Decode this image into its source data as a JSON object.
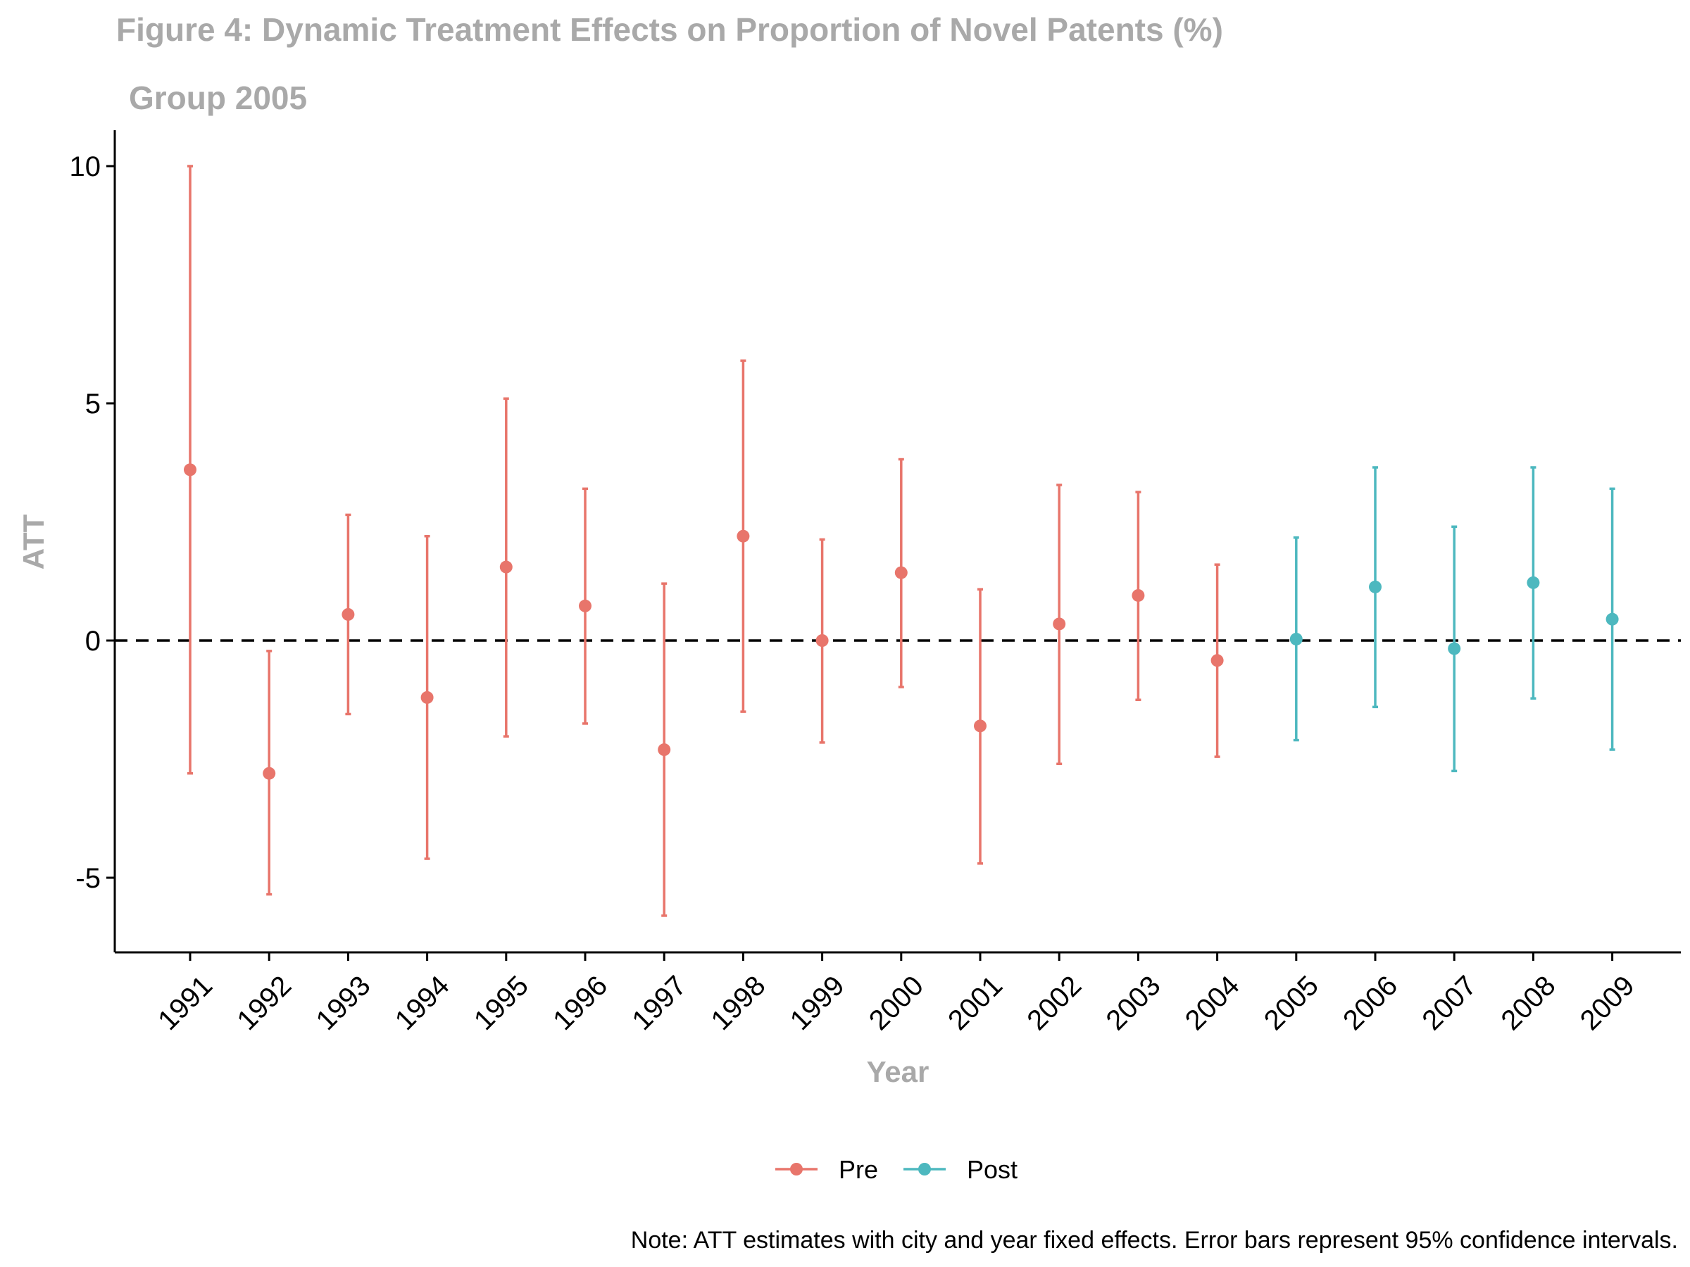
{
  "chart_data": {
    "type": "scatter",
    "title": "Figure 4: Dynamic Treatment Effects on Proportion of Novel Patents (%)",
    "subtitle": "Group 2005",
    "xlabel": "Year",
    "ylabel": "ATT",
    "ylim": [
      -6.5,
      10.8
    ],
    "yticks": [
      -5,
      0,
      5,
      10
    ],
    "ytick_labels": [
      "-5",
      "0",
      "5",
      "10"
    ],
    "reference_line": 0,
    "grid": false,
    "legend_position": "bottom",
    "colors": {
      "Pre": "#e8756b",
      "Post": "#4db8bf",
      "axis": "#000000",
      "muted_text": "#a9a9a9"
    },
    "categories": [
      "1991",
      "1992",
      "1993",
      "1994",
      "1995",
      "1996",
      "1997",
      "1998",
      "1999",
      "2000",
      "2001",
      "2002",
      "2003",
      "2004",
      "2005",
      "2006",
      "2007",
      "2008",
      "2009"
    ],
    "series": [
      {
        "name": "Pre",
        "x": [
          "1991",
          "1992",
          "1993",
          "1994",
          "1995",
          "1996",
          "1997",
          "1998",
          "1999",
          "2000",
          "2001",
          "2002",
          "2003",
          "2004"
        ],
        "y": [
          3.6,
          -2.8,
          0.55,
          -1.2,
          1.55,
          0.73,
          -2.3,
          2.2,
          0.0,
          1.43,
          -1.8,
          0.35,
          0.95,
          -0.42
        ],
        "lower": [
          -2.8,
          -5.35,
          -1.55,
          -4.6,
          -2.02,
          -1.75,
          -5.8,
          -1.5,
          -2.15,
          -0.98,
          -4.7,
          -2.6,
          -1.25,
          -2.45
        ],
        "upper": [
          10.0,
          -0.22,
          2.65,
          2.2,
          5.1,
          3.2,
          1.2,
          5.9,
          2.13,
          3.82,
          1.08,
          3.28,
          3.13,
          1.6
        ]
      },
      {
        "name": "Post",
        "x": [
          "2005",
          "2006",
          "2007",
          "2008",
          "2009"
        ],
        "y": [
          0.03,
          1.13,
          -0.17,
          1.22,
          0.45
        ],
        "lower": [
          -2.1,
          -1.4,
          -2.75,
          -1.22,
          -2.3
        ],
        "upper": [
          2.17,
          3.65,
          2.4,
          3.65,
          3.2
        ]
      }
    ]
  },
  "note": "Note: ATT estimates with city and year fixed effects. Error bars represent 95% confidence intervals."
}
